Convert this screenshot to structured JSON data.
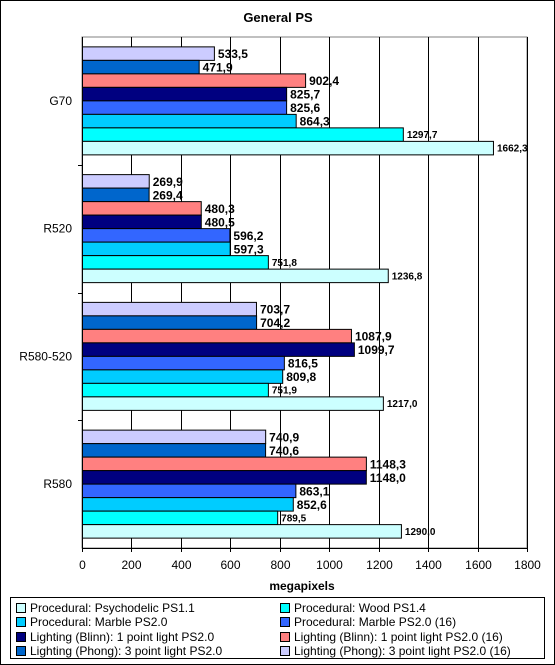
{
  "chart_data": {
    "type": "bar",
    "orientation": "horizontal",
    "title": "General PS",
    "xlabel": "megapixels",
    "ylabel": "",
    "xlim": [
      0,
      1800
    ],
    "x_ticks": [
      "0",
      "200",
      "400",
      "600",
      "800",
      "1000",
      "1200",
      "1400",
      "1600",
      "1800"
    ],
    "grid": "vertical",
    "legend_position": "bottom",
    "categories": [
      "G70",
      "R520",
      "R580-520",
      "R580"
    ],
    "series": [
      {
        "name": "Procedural: Psychodelic PS1.1",
        "color": "#ccffff",
        "values": [
          1662.3,
          1236.8,
          1217.0,
          1290.0
        ],
        "labels": [
          "1662,3",
          "1236,8",
          "1217,0",
          "1290,0"
        ]
      },
      {
        "name": "Procedural: Wood PS1.4",
        "color": "#00ffff",
        "values": [
          1297.7,
          751.8,
          751.9,
          789.5
        ],
        "labels": [
          "1297,7",
          "751,8",
          "751,9",
          "789,5"
        ]
      },
      {
        "name": "Procedural: Marble PS2.0",
        "color": "#00ccff",
        "values": [
          864.3,
          597.3,
          809.8,
          852.6
        ],
        "labels": [
          "864,3",
          "597,3",
          "809,8",
          "852,6"
        ]
      },
      {
        "name": "Procedural: Marble PS2.0 (16)",
        "color": "#3366ff",
        "values": [
          825.6,
          596.2,
          816.5,
          863.1
        ],
        "labels": [
          "825,6",
          "596,2",
          "816,5",
          "863,1"
        ]
      },
      {
        "name": "Lighting (Blinn): 1 point light PS2.0",
        "color": "#000080",
        "values": [
          825.7,
          480.5,
          1099.7,
          1148.0
        ],
        "labels": [
          "825,7",
          "480,5",
          "1099,7",
          "1148,0"
        ]
      },
      {
        "name": "Lighting (Blinn): 1 point light PS2.0 (16)",
        "color": "#ff8080",
        "values": [
          902.4,
          480.3,
          1087.9,
          1148.3
        ],
        "labels": [
          "902,4",
          "480,3",
          "1087,9",
          "1148,3"
        ]
      },
      {
        "name": "Lighting (Phong): 3 point light PS2.0",
        "color": "#0066cc",
        "values": [
          471.9,
          269.4,
          704.2,
          740.6
        ],
        "labels": [
          "471,9",
          "269,4",
          "704,2",
          "740,6"
        ]
      },
      {
        "name": "Lighting (Phong): 3 point light PS2.0 (16)",
        "color": "#ccccff",
        "values": [
          533.5,
          269.9,
          703.7,
          740.9
        ],
        "labels": [
          "533,5",
          "269,9",
          "703,7",
          "740,9"
        ]
      }
    ]
  }
}
